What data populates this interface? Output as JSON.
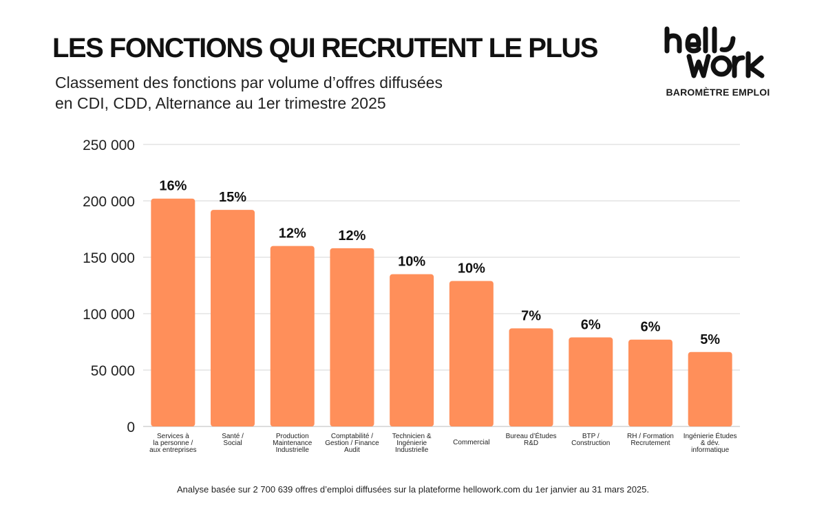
{
  "header": {
    "title": "LES FONCTIONS QUI RECRUTENT LE PLUS",
    "subtitle_line1": "Classement des fonctions par volume d’offres diffusées",
    "subtitle_line2": "en CDI, CDD, Alternance au 1er trimestre 2025"
  },
  "brand": {
    "logo_text": "hellowork",
    "logo_line1": "hell",
    "logo_line2": "work",
    "tagline": "BAROMÈTRE EMPLOI"
  },
  "chart_data": {
    "type": "bar",
    "title": "LES FONCTIONS QUI RECRUTENT LE PLUS",
    "xlabel": "",
    "ylabel": "",
    "ylim": [
      0,
      250000
    ],
    "yticks": [
      0,
      50000,
      100000,
      150000,
      200000,
      250000
    ],
    "ytick_labels": [
      "0",
      "50 000",
      "100 000",
      "150 000",
      "200 000",
      "250 000"
    ],
    "grid": true,
    "bar_color": "#ff8f5a",
    "categories": [
      [
        "Services à",
        "la personne /",
        "aux entreprises"
      ],
      [
        "Santé /",
        "Social"
      ],
      [
        "Production",
        "Maintenance",
        "Industrielle"
      ],
      [
        "Comptabilité /",
        "Gestion / Finance",
        "Audit"
      ],
      [
        "Technicien &",
        "Ingénierie",
        "Industrielle"
      ],
      [
        "Commercial"
      ],
      [
        "Bureau d’Études",
        "R&D"
      ],
      [
        "BTP /",
        "Construction"
      ],
      [
        "RH / Formation",
        "Recrutement"
      ],
      [
        "Ingénierie Études",
        "& dév.",
        "informatique"
      ]
    ],
    "values": [
      202000,
      192000,
      160000,
      158000,
      135000,
      129000,
      87000,
      79000,
      77000,
      66000
    ],
    "data_labels": [
      "16%",
      "15%",
      "12%",
      "12%",
      "10%",
      "10%",
      "7%",
      "6%",
      "6%",
      "5%"
    ]
  },
  "footnote": "Analyse basée sur 2 700 639 offres d’emploi diffusées sur la plateforme hellowork.com du 1er janvier au 31 mars 2025."
}
